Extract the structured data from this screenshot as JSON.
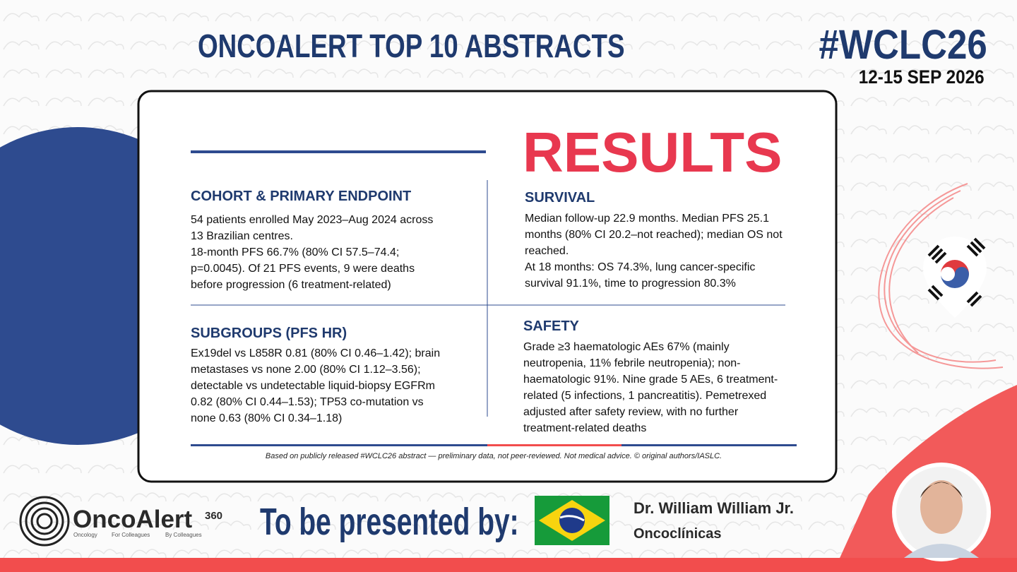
{
  "header": {
    "title": "ONCOALERT TOP 10 ABSTRACTS",
    "hashtag": "#WCLC26",
    "dates": "12-15 SEP 2026"
  },
  "card": {
    "heading": "RESULTS",
    "sections": [
      {
        "title": "COHORT & PRIMARY ENDPOINT",
        "paragraphs": [
          "54 patients enrolled May 2023–Aug 2024 across 13 Brazilian centres.",
          "18-month PFS 66.7% (80% CI 57.5–74.4; p=0.0045). Of 21 PFS events, 9 were deaths before progression (6 treatment-related)"
        ]
      },
      {
        "title": "SURVIVAL",
        "paragraphs": [
          "Median follow-up 22.9 months. Median PFS 25.1 months (80% CI 20.2–not reached); median OS not reached.",
          "At 18 months: OS 74.3%, lung cancer-specific survival 91.1%, time to progression 80.3%"
        ]
      },
      {
        "title": "SUBGROUPS (PFS HR)",
        "paragraphs": [
          "Ex19del vs L858R 0.81 (80% CI 0.46–1.42); brain metastases vs none 2.00 (80% CI 1.12–3.56); detectable vs undetectable liquid-biopsy EGFRm 0.82 (80% CI 0.44–1.53); TP53 co-mutation vs none 0.63 (80% CI 0.34–1.18)"
        ]
      },
      {
        "title": "SAFETY",
        "paragraphs": [
          "Grade ≥3 haematologic AEs 67% (mainly neutropenia, 11% febrile neutropenia); non-haematologic 91%. Nine grade 5 AEs, 6 treatment-related (5 infections, 1 pancreatitis). Pemetrexed adjusted after safety review, with no further treatment-related deaths"
        ]
      }
    ],
    "footnote": "Based on publicly released #WCLC26 abstract — preliminary data, not peer-reviewed. Not medical advice. © original authors/IASLC."
  },
  "footer": {
    "logo": {
      "name": "OncoAlert",
      "superscript": "360",
      "taglines": [
        "Oncology",
        "For Colleagues",
        "By Colleagues"
      ]
    },
    "presented_label": "To be presented by:",
    "presenter": "Dr. William William Jr.",
    "affiliation": "Oncoclínicas"
  }
}
